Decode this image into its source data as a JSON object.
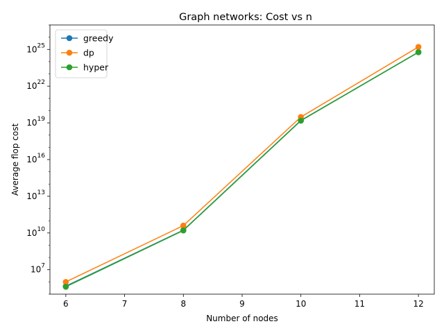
{
  "chart_data": {
    "type": "line",
    "title": "Graph networks: Cost vs n",
    "xlabel": "Number of nodes",
    "ylabel": "Average flop cost",
    "x": [
      6,
      8,
      10,
      12
    ],
    "xlim": [
      5.73,
      12.27
    ],
    "ylim": [
      100000.0,
      1e+27
    ],
    "yscale": "log",
    "x_ticks": [
      6,
      7,
      8,
      9,
      10,
      11,
      12
    ],
    "y_ticks": [
      {
        "base": "10",
        "exp": "7",
        "value": 10000000.0
      },
      {
        "base": "10",
        "exp": "10",
        "value": 10000000000.0
      },
      {
        "base": "10",
        "exp": "13",
        "value": 10000000000000.0
      },
      {
        "base": "10",
        "exp": "16",
        "value": 1e+16
      },
      {
        "base": "10",
        "exp": "19",
        "value": 1e+19
      },
      {
        "base": "10",
        "exp": "22",
        "value": 1e+22
      },
      {
        "base": "10",
        "exp": "25",
        "value": 1e+25
      }
    ],
    "series": [
      {
        "name": "greedy",
        "color": "#1f77b4",
        "values": [
          450000.0,
          17000000000.0,
          1.6e+19,
          6e+24
        ]
      },
      {
        "name": "dp",
        "color": "#ff7f0e",
        "values": [
          1000000.0,
          40000000000.0,
          3e+19,
          1.6e+25
        ]
      },
      {
        "name": "hyper",
        "color": "#2ca02c",
        "values": [
          400000.0,
          16000000000.0,
          1.5e+19,
          5.9e+24
        ]
      }
    ],
    "legend": "upper left",
    "grid": false,
    "marker": "circle"
  }
}
